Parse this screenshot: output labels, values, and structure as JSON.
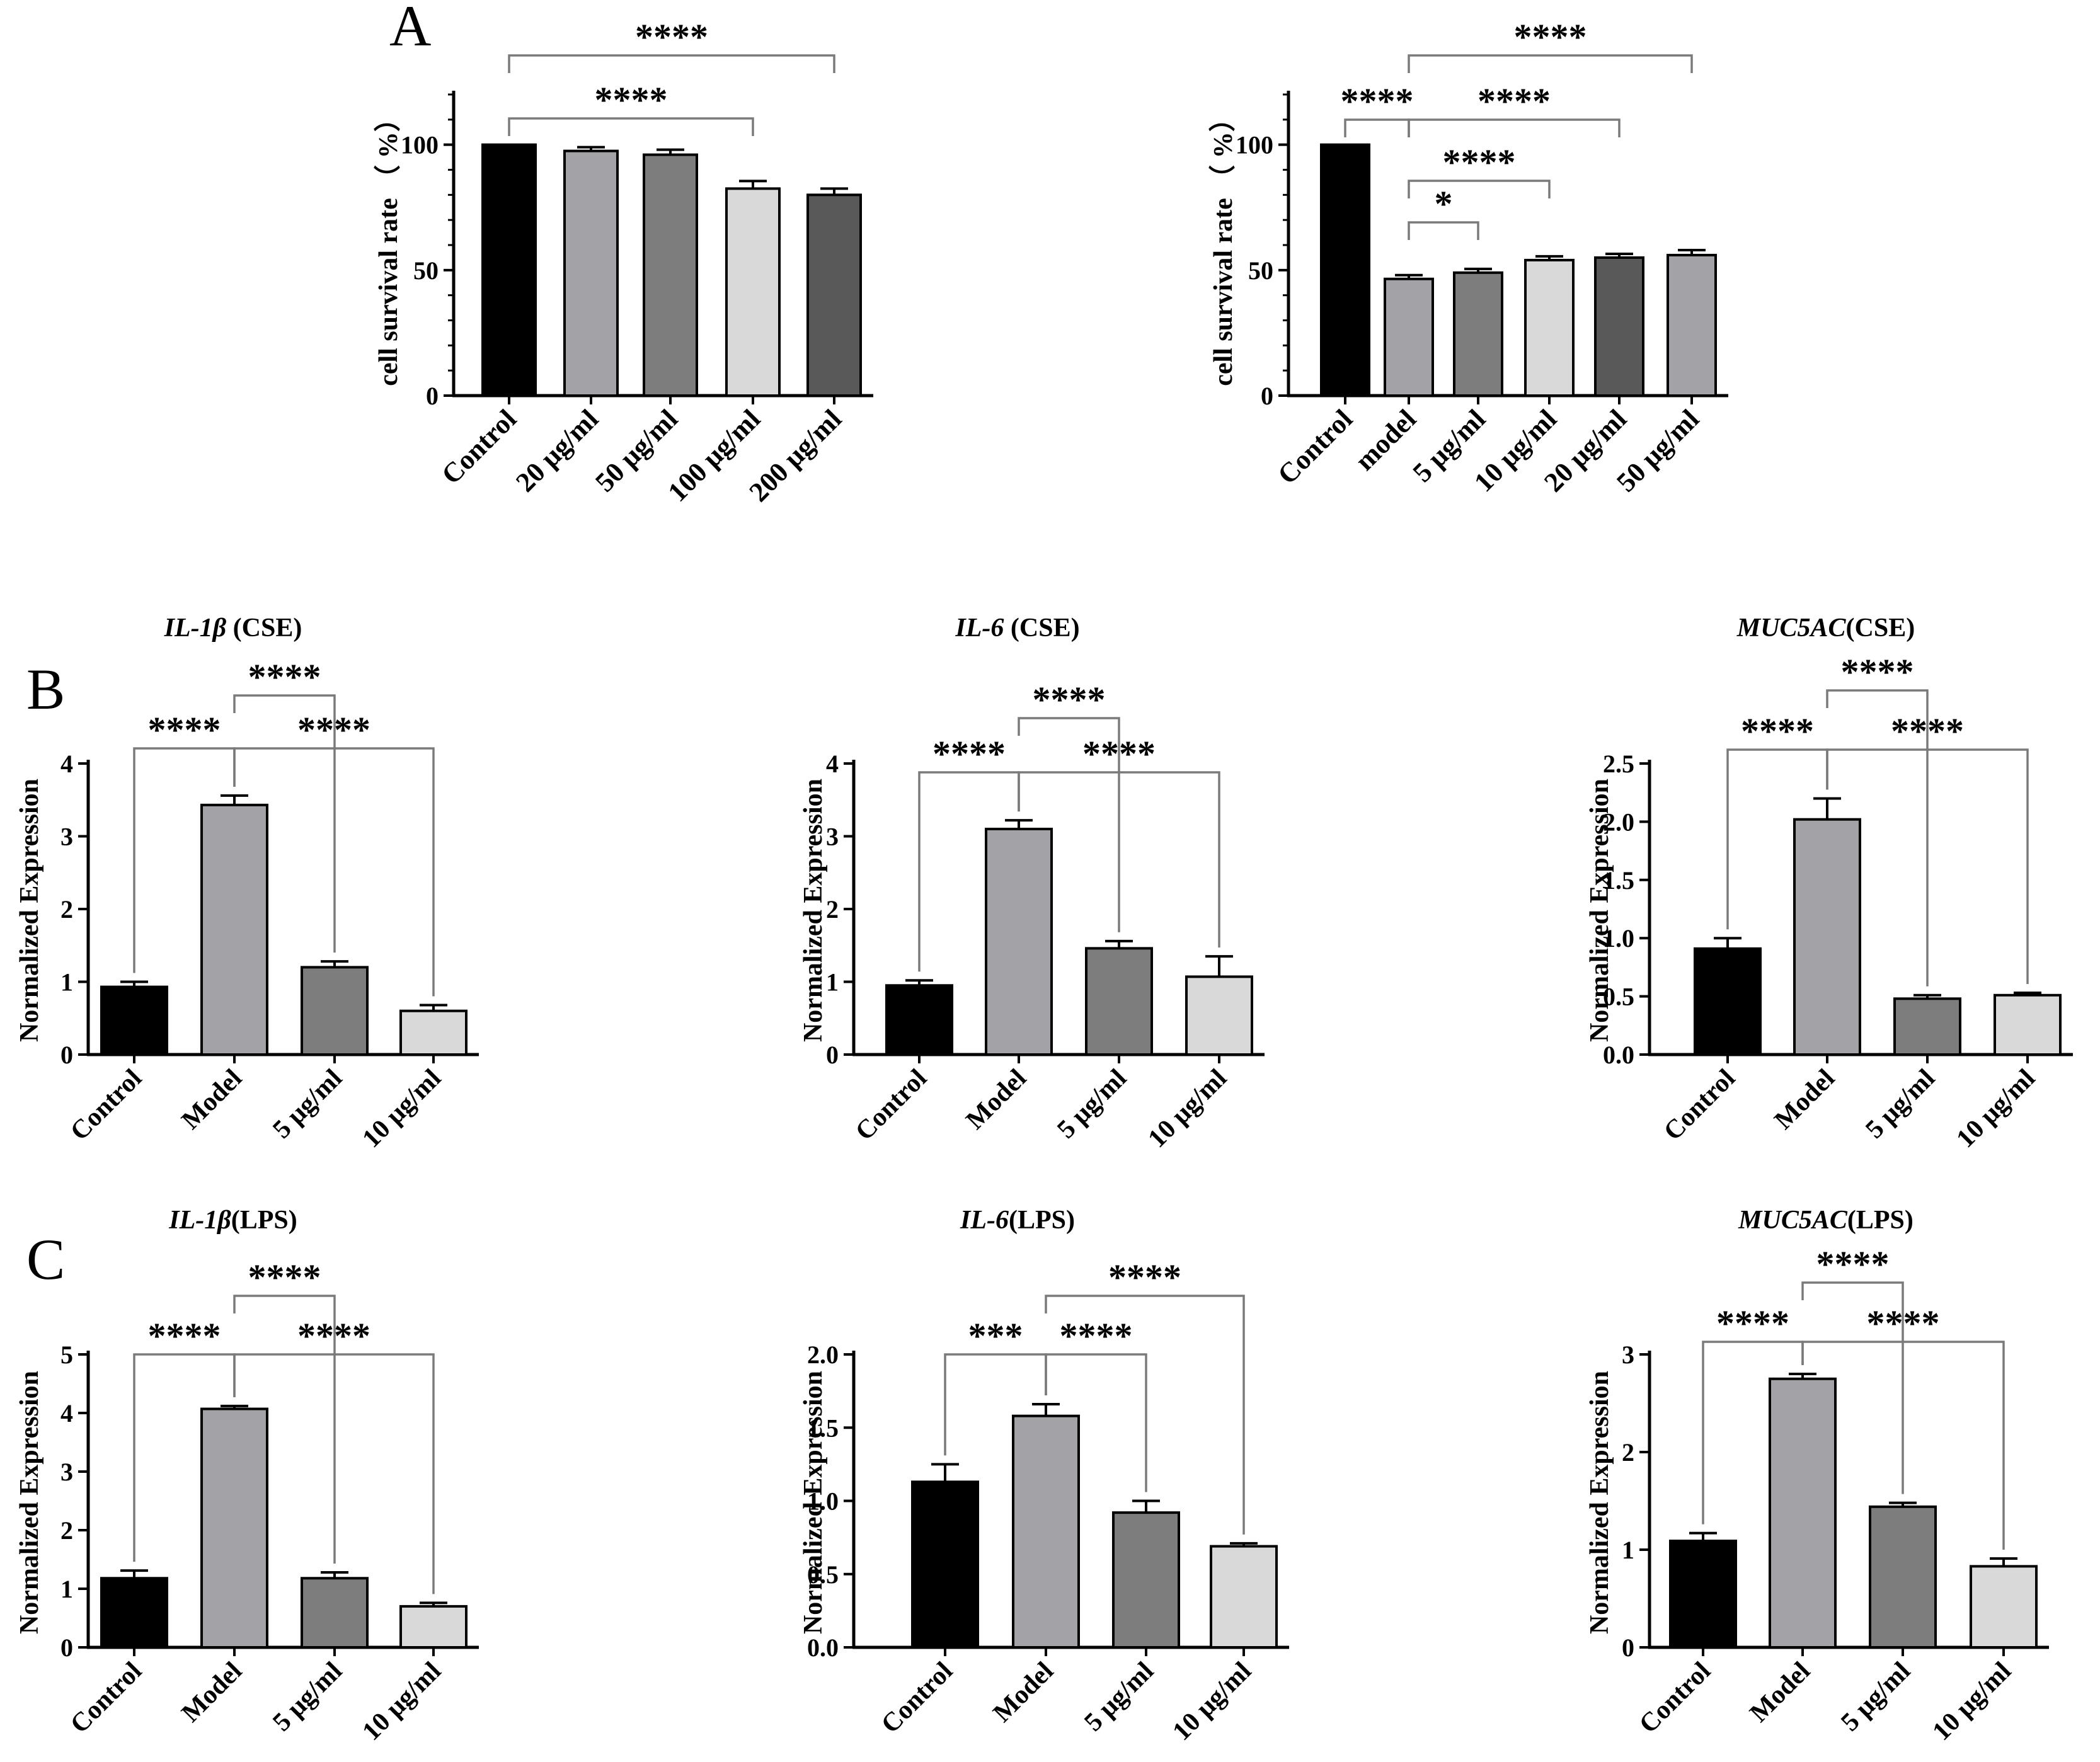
{
  "figure": {
    "panel_labels": [
      "A",
      "B",
      "C"
    ]
  },
  "chart_data": [
    {
      "type": "bar",
      "title": "",
      "ylabel": "cell survival rate （ %）",
      "ylim": [
        0,
        120
      ],
      "yticks": [
        0,
        50,
        100
      ],
      "categories": [
        "Control",
        "20 μg/ml",
        "50 μg/ml",
        "100 μg/ml",
        "200 μg/ml"
      ],
      "values": [
        100,
        97.5,
        96,
        82.5,
        80
      ],
      "errors": [
        0,
        1.5,
        2,
        3,
        2.5
      ],
      "colors": [
        "#000000",
        "#a2a2a7",
        "#7d7d7d",
        "#d9d9d9",
        "#595959"
      ],
      "significance": [
        {
          "from": 0,
          "to": 4,
          "label": "****"
        },
        {
          "from": 0,
          "to": 3,
          "label": "****"
        }
      ]
    },
    {
      "type": "bar",
      "title": "",
      "ylabel": "cell survival rate （ %）",
      "ylim": [
        0,
        120
      ],
      "yticks": [
        0,
        50,
        100
      ],
      "categories": [
        "Control",
        "model",
        "5 μg/ml",
        "10 μg/ml",
        "20 μg/ml",
        "50 μg/ml"
      ],
      "values": [
        100,
        46.5,
        49,
        54,
        55,
        56
      ],
      "errors": [
        0,
        1.5,
        1.5,
        1.5,
        1.5,
        2
      ],
      "colors": [
        "#000000",
        "#a2a2a7",
        "#7d7d7d",
        "#d9d9d9",
        "#595959",
        "#a2a2a7"
      ],
      "significance": [
        {
          "from": 1,
          "to": 5,
          "label": "****"
        },
        {
          "from": 0,
          "to": 1,
          "label": "****"
        },
        {
          "from": 1,
          "to": 4,
          "label": "****"
        },
        {
          "from": 1,
          "to": 3,
          "label": "****"
        },
        {
          "from": 1,
          "to": 2,
          "label": "*"
        }
      ]
    },
    {
      "type": "bar",
      "title_gene": "IL-1β",
      "title_rest": " (CSE)",
      "ylabel": "Normalized Expression",
      "ylim": [
        0,
        4
      ],
      "yticks": [
        "0",
        "1",
        "2",
        "3",
        "4"
      ],
      "categories": [
        "Control",
        "Model",
        "5 μg/ml",
        "10 μg/ml"
      ],
      "values": [
        0.93,
        3.43,
        1.2,
        0.6
      ],
      "errors": [
        0.07,
        0.13,
        0.08,
        0.08
      ],
      "colors": [
        "#000000",
        "#a2a2a7",
        "#7d7d7d",
        "#d9d9d9"
      ],
      "significance": [
        {
          "from": 1,
          "to": 2,
          "label": "****"
        },
        {
          "from": 0,
          "to": 1,
          "label": "****"
        },
        {
          "from": 1,
          "to": 3,
          "label": "****"
        }
      ]
    },
    {
      "type": "bar",
      "title_gene": "IL-6",
      "title_rest": " (CSE)",
      "ylabel": "Normalized Expression",
      "ylim": [
        0,
        4
      ],
      "yticks": [
        "0",
        "1",
        "2",
        "3",
        "4"
      ],
      "categories": [
        "Control",
        "Model",
        "5 μg/ml",
        "10 μg/ml"
      ],
      "values": [
        0.95,
        3.1,
        1.46,
        1.07
      ],
      "errors": [
        0.07,
        0.12,
        0.1,
        0.28
      ],
      "colors": [
        "#000000",
        "#a2a2a7",
        "#7d7d7d",
        "#d9d9d9"
      ],
      "significance": [
        {
          "from": 1,
          "to": 2,
          "label": "****"
        },
        {
          "from": 0,
          "to": 1,
          "label": "****"
        },
        {
          "from": 1,
          "to": 3,
          "label": "****"
        }
      ]
    },
    {
      "type": "bar",
      "title_gene": "MUC5AC",
      "title_rest": "(CSE)",
      "ylabel": "Normalized Expression",
      "ylim": [
        0,
        2.5
      ],
      "yticks": [
        "0.0",
        "0.5",
        "1.0",
        "1.5",
        "2.0",
        "2.5"
      ],
      "categories": [
        "Control",
        "Model",
        "5 μg/ml",
        "10 μg/ml"
      ],
      "values": [
        0.91,
        2.02,
        0.48,
        0.51
      ],
      "errors": [
        0.09,
        0.18,
        0.03,
        0.02
      ],
      "colors": [
        "#000000",
        "#a2a2a7",
        "#7d7d7d",
        "#d9d9d9"
      ],
      "significance": [
        {
          "from": 1,
          "to": 2,
          "label": "****"
        },
        {
          "from": 0,
          "to": 1,
          "label": "****"
        },
        {
          "from": 1,
          "to": 3,
          "label": "****"
        }
      ]
    },
    {
      "type": "bar",
      "title_gene": "IL-1β",
      "title_rest": "(LPS)",
      "ylabel": "Normalized Expression",
      "ylim": [
        0,
        5
      ],
      "yticks": [
        "0",
        "1",
        "2",
        "3",
        "4",
        "5"
      ],
      "categories": [
        "Control",
        "Model",
        "5 μg/ml",
        "10 μg/ml"
      ],
      "values": [
        1.18,
        4.07,
        1.18,
        0.7
      ],
      "errors": [
        0.13,
        0.05,
        0.1,
        0.06
      ],
      "colors": [
        "#000000",
        "#a2a2a7",
        "#7d7d7d",
        "#d9d9d9"
      ],
      "significance": [
        {
          "from": 1,
          "to": 2,
          "label": "****"
        },
        {
          "from": 0,
          "to": 1,
          "label": "****"
        },
        {
          "from": 1,
          "to": 3,
          "label": "****"
        }
      ]
    },
    {
      "type": "bar",
      "title_gene": "IL-6",
      "title_rest": "(LPS)",
      "ylabel": "Normalized Expression",
      "ylim": [
        0,
        2
      ],
      "yticks": [
        "0.0",
        "0.5",
        "1.0",
        "1.5",
        "2.0"
      ],
      "categories": [
        "Control",
        "Model",
        "5 μg/ml",
        "10 μg/ml"
      ],
      "values": [
        1.13,
        1.58,
        0.92,
        0.69
      ],
      "errors": [
        0.12,
        0.08,
        0.08,
        0.02
      ],
      "colors": [
        "#000000",
        "#a2a2a7",
        "#7d7d7d",
        "#d9d9d9"
      ],
      "significance": [
        {
          "from": 1,
          "to": 3,
          "label": "****"
        },
        {
          "from": 0,
          "to": 1,
          "label": "***"
        },
        {
          "from": 1,
          "to": 2,
          "label": "****"
        }
      ]
    },
    {
      "type": "bar",
      "title_gene": "MUC5AC",
      "title_rest": "(LPS)",
      "ylabel": "Normalized Expression",
      "ylim": [
        0,
        3
      ],
      "yticks": [
        "0",
        "1",
        "2",
        "3"
      ],
      "categories": [
        "Control",
        "Model",
        "5 μg/ml",
        "10 μg/ml"
      ],
      "values": [
        1.09,
        2.75,
        1.44,
        0.83
      ],
      "errors": [
        0.08,
        0.05,
        0.04,
        0.08
      ],
      "colors": [
        "#000000",
        "#a2a2a7",
        "#7d7d7d",
        "#d9d9d9"
      ],
      "significance": [
        {
          "from": 1,
          "to": 2,
          "label": "****"
        },
        {
          "from": 0,
          "to": 1,
          "label": "****"
        },
        {
          "from": 1,
          "to": 3,
          "label": "****"
        }
      ]
    }
  ]
}
